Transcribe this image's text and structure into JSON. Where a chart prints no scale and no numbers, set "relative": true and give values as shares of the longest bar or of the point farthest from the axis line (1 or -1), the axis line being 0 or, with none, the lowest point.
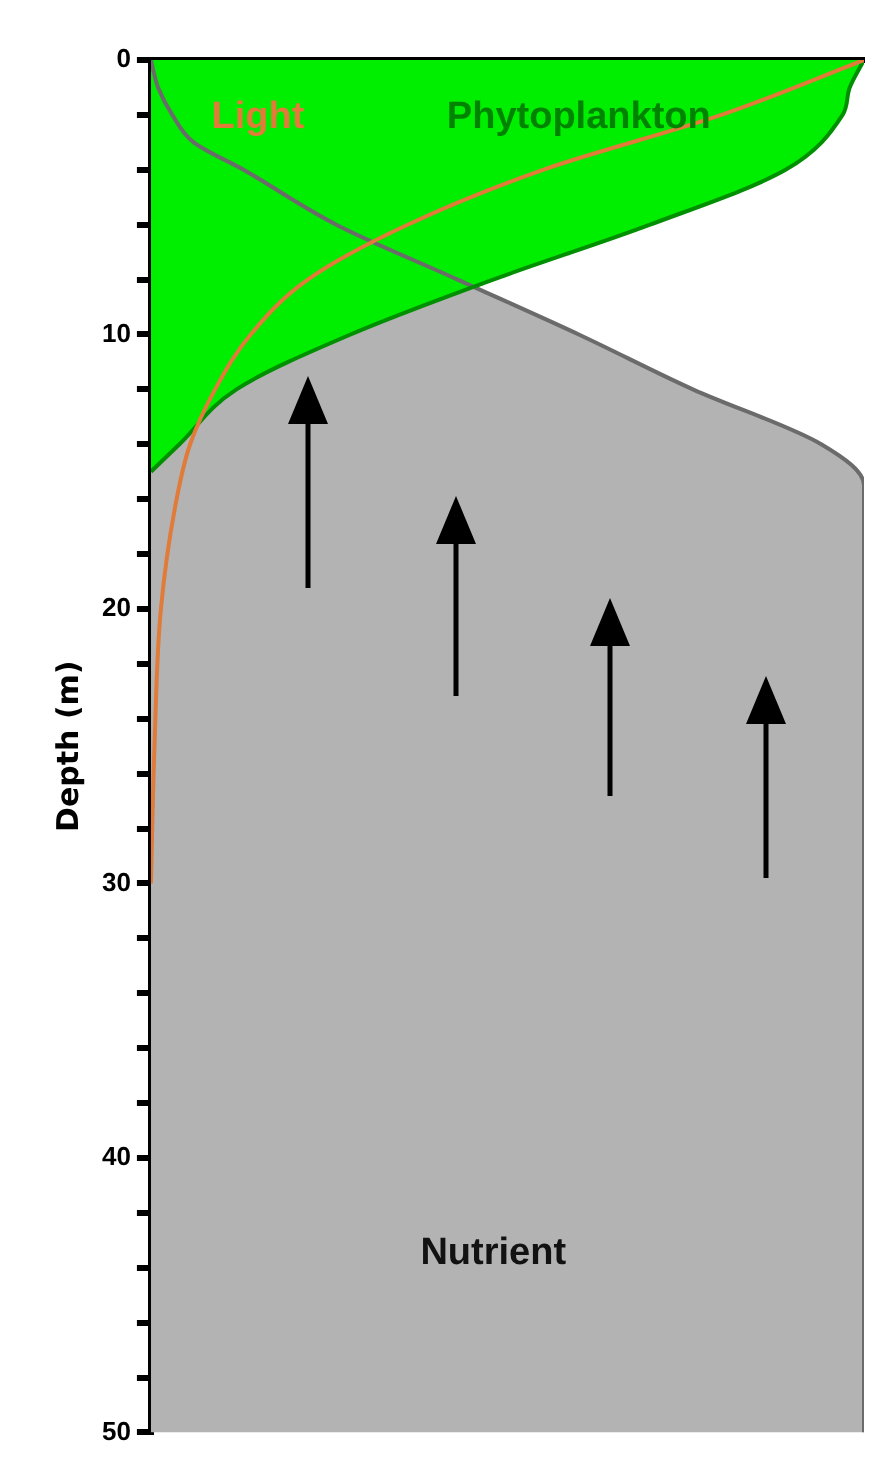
{
  "chart_data": {
    "type": "area",
    "orientation": "horizontal",
    "relative": true,
    "ylabel": "Depth (m)",
    "ylim": [
      50,
      0
    ],
    "yticks": [
      0,
      {
        "value": 2,
        "label": null
      },
      {
        "value": 4,
        "label": null
      },
      {
        "value": 6,
        "label": null
      },
      {
        "value": 8,
        "label": null
      },
      10,
      {
        "value": 12,
        "label": null
      },
      {
        "value": 14,
        "label": null
      },
      {
        "value": 16,
        "label": null
      },
      {
        "value": 18,
        "label": null
      },
      20,
      {
        "value": 22,
        "label": null
      },
      {
        "value": 24,
        "label": null
      },
      {
        "value": 26,
        "label": null
      },
      {
        "value": 28,
        "label": null
      },
      30,
      {
        "value": 32,
        "label": null
      },
      {
        "value": 34,
        "label": null
      },
      {
        "value": 36,
        "label": null
      },
      {
        "value": 38,
        "label": null
      },
      40,
      {
        "value": 42,
        "label": null
      },
      {
        "value": 44,
        "label": null
      },
      {
        "value": 46,
        "label": null
      },
      {
        "value": 48,
        "label": null
      },
      50
    ],
    "grid": false,
    "legend": false,
    "series": [
      {
        "name": "Light",
        "type": "line",
        "color": "#e07b39",
        "x": [
          0,
          2,
          4,
          6,
          8,
          10,
          12,
          14,
          16,
          20,
          25,
          30
        ],
        "values": [
          1,
          0.8,
          0.55,
          0.36,
          0.22,
          0.14,
          0.09,
          0.055,
          0.036,
          0.014,
          0.005,
          0
        ]
      },
      {
        "name": "Phytoplankton",
        "type": "area",
        "color": "#00ee00",
        "x": [
          0,
          1,
          2,
          4,
          6,
          8,
          10,
          12,
          14,
          15
        ],
        "values": [
          1,
          0.98,
          0.97,
          0.89,
          0.7,
          0.48,
          0.28,
          0.12,
          0.04,
          0
        ]
      },
      {
        "name": "Nutrient",
        "color": "#b3b3b3",
        "x": [
          0,
          1,
          2,
          3,
          4,
          6,
          8,
          10,
          12,
          14,
          15.5,
          50
        ],
        "values": [
          0,
          0.01,
          0.03,
          0.06,
          0.13,
          0.26,
          0.43,
          0.6,
          0.76,
          0.94,
          1,
          1
        ]
      }
    ]
  }
}
